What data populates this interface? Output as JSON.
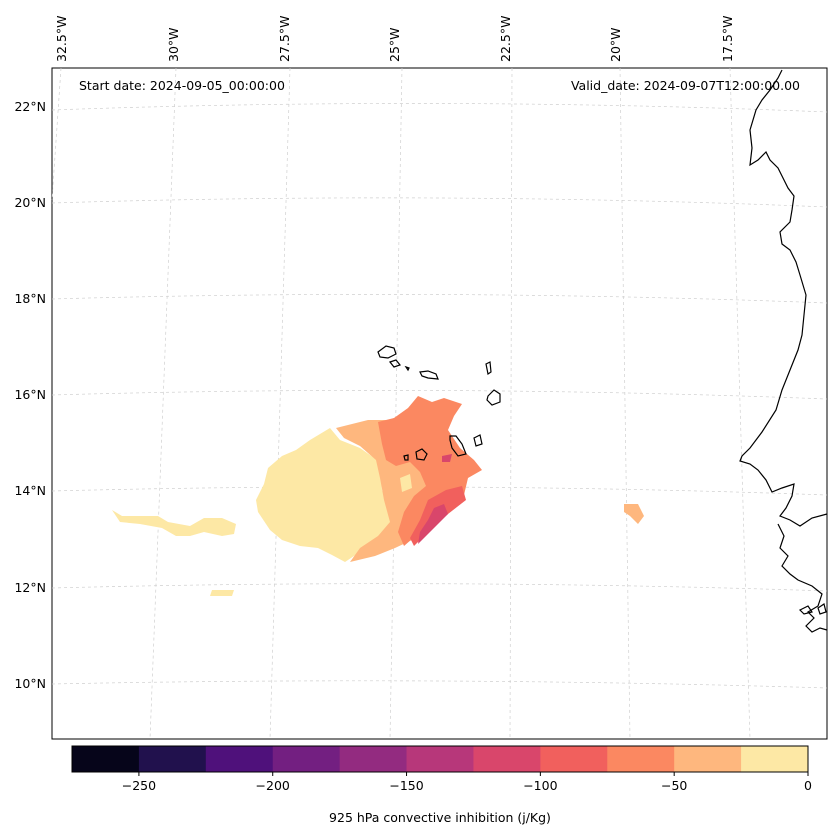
{
  "header": {
    "start_date": "Start date: 2024-09-05_00:00:00",
    "valid_date": "Valid_date: 2024-09-07T12:00:00.00"
  },
  "longitude_labels": [
    "32.5°W",
    "30°W",
    "27.5°W",
    "25°W",
    "22.5°W",
    "20°W",
    "17.5°W"
  ],
  "latitude_labels": [
    "22°N",
    "20°N",
    "18°N",
    "16°N",
    "14°N",
    "12°N",
    "10°N"
  ],
  "colorbar": {
    "label": "925 hPa convective inhibition (j/Kg)",
    "ticks": [
      "−250",
      "−200",
      "−150",
      "−100",
      "−50",
      "0"
    ],
    "bin_edges": [
      -275,
      -250,
      -225,
      -200,
      -175,
      -150,
      -125,
      -100,
      -75,
      -50,
      -25,
      0
    ],
    "colors": [
      "#06051a",
      "#21114d",
      "#4f117b",
      "#731f81",
      "#932b80",
      "#b7377a",
      "#d9466b",
      "#f1605d",
      "#fb8861",
      "#feb77e",
      "#fde8a5"
    ]
  },
  "fields": [
    {
      "name": "cin-plume-weak",
      "value_range": [
        -25,
        0
      ],
      "color": "#fde8a5"
    },
    {
      "name": "cin-plume-moderate",
      "value_range": [
        -50,
        -25
      ],
      "color": "#feb77e"
    },
    {
      "name": "cin-plume-strong",
      "value_range": [
        -75,
        -50
      ],
      "color": "#fb8861"
    },
    {
      "name": "cin-plume-core",
      "value_range": [
        -100,
        -75
      ],
      "color": "#f1605d"
    },
    {
      "name": "cin-plume-max",
      "value_range": [
        -125,
        -100
      ],
      "color": "#d9466b"
    }
  ]
}
